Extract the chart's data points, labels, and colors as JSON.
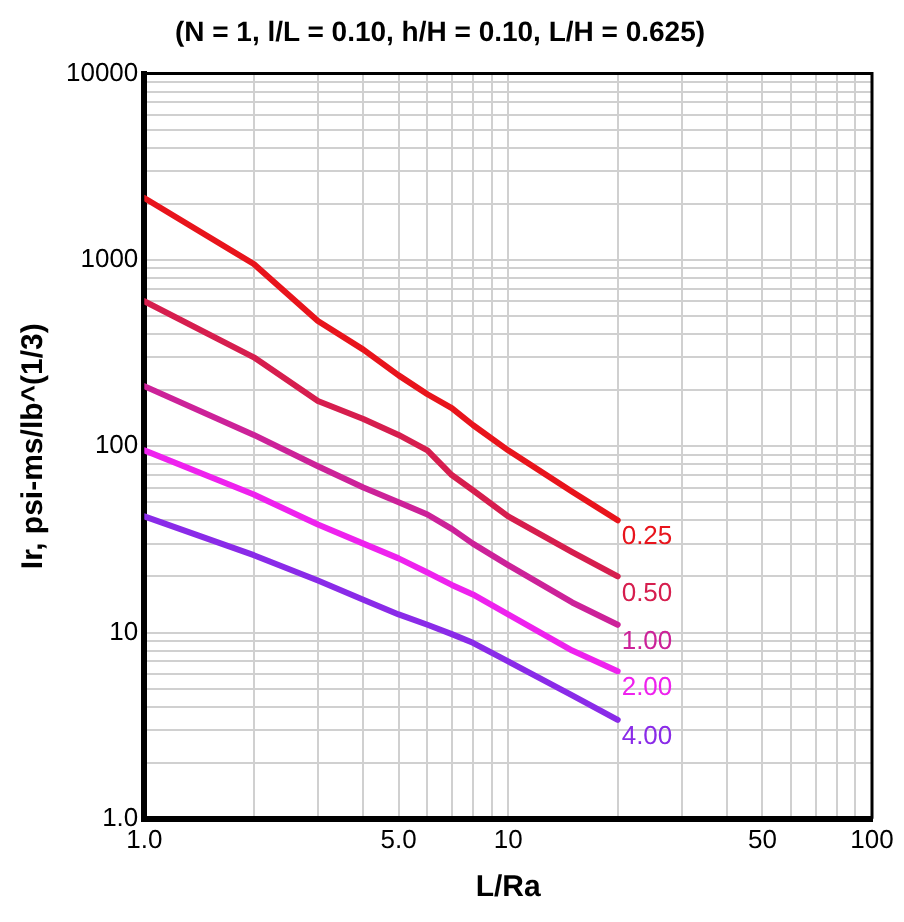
{
  "chart_data": {
    "type": "line",
    "title": "(N = 1, l/L = 0.10, h/H = 0.10, L/H = 0.625)",
    "xlabel": "L/Ra",
    "ylabel": "Ir, psi-ms/lb^(1/3)",
    "log": "xy",
    "grid": true,
    "legend": false,
    "marker": "none",
    "line_style": "solid",
    "x": [
      1,
      2,
      3,
      4,
      5,
      6,
      7,
      8,
      10,
      15,
      20
    ],
    "xlim": [
      1,
      100
    ],
    "ylim": [
      1,
      10000
    ],
    "xticks": [
      {
        "value": 1,
        "label": "1.0"
      },
      {
        "value": 2,
        "label": null
      },
      {
        "value": 3,
        "label": null
      },
      {
        "value": 4,
        "label": null
      },
      {
        "value": 5,
        "label": "5.0"
      },
      {
        "value": 6,
        "label": null
      },
      {
        "value": 7,
        "label": null
      },
      {
        "value": 8,
        "label": null
      },
      {
        "value": 9,
        "label": null
      },
      10,
      {
        "value": 20,
        "label": null
      },
      {
        "value": 30,
        "label": null
      },
      {
        "value": 40,
        "label": null
      },
      50,
      {
        "value": 60,
        "label": null
      },
      {
        "value": 70,
        "label": null
      },
      {
        "value": 80,
        "label": null
      },
      {
        "value": 90,
        "label": null
      },
      100
    ],
    "yticks": [
      {
        "value": 1,
        "label": "1.0"
      },
      {
        "value": 2,
        "label": null
      },
      {
        "value": 3,
        "label": null
      },
      {
        "value": 4,
        "label": null
      },
      {
        "value": 5,
        "label": null
      },
      {
        "value": 6,
        "label": null
      },
      {
        "value": 7,
        "label": null
      },
      {
        "value": 8,
        "label": null
      },
      {
        "value": 9,
        "label": null
      },
      10,
      {
        "value": 20,
        "label": null
      },
      {
        "value": 30,
        "label": null
      },
      {
        "value": 40,
        "label": null
      },
      {
        "value": 50,
        "label": null
      },
      {
        "value": 60,
        "label": null
      },
      {
        "value": 70,
        "label": null
      },
      {
        "value": 80,
        "label": null
      },
      {
        "value": 90,
        "label": null
      },
      100,
      {
        "value": 200,
        "label": null
      },
      {
        "value": 300,
        "label": null
      },
      {
        "value": 400,
        "label": null
      },
      {
        "value": 500,
        "label": null
      },
      {
        "value": 600,
        "label": null
      },
      {
        "value": 700,
        "label": null
      },
      {
        "value": 800,
        "label": null
      },
      {
        "value": 900,
        "label": null
      },
      1000,
      {
        "value": 2000,
        "label": null
      },
      {
        "value": 3000,
        "label": null
      },
      {
        "value": 4000,
        "label": null
      },
      {
        "value": 5000,
        "label": null
      },
      {
        "value": 6000,
        "label": null
      },
      {
        "value": 7000,
        "label": null
      },
      {
        "value": 8000,
        "label": null
      },
      {
        "value": 9000,
        "label": null
      },
      10000
    ],
    "series": [
      {
        "name": "0.25",
        "color": "#e8141c",
        "values": [
          2150,
          950,
          470,
          330,
          240,
          190,
          160,
          130,
          95,
          57,
          40
        ]
      },
      {
        "name": "0.50",
        "color": "#d61e4e",
        "values": [
          600,
          300,
          175,
          140,
          115,
          95,
          70,
          58,
          42,
          27,
          20
        ]
      },
      {
        "name": "1.00",
        "color": "#cc2299",
        "values": [
          210,
          115,
          78,
          60,
          50,
          43,
          36,
          30,
          23,
          14.5,
          11
        ]
      },
      {
        "name": "2.00",
        "color": "#ee22ee",
        "values": [
          95,
          55,
          38,
          30,
          25,
          21,
          18,
          16,
          12.5,
          8,
          6.2
        ]
      },
      {
        "name": "4.00",
        "color": "#8a2be8",
        "values": [
          42,
          26,
          19,
          15,
          12.5,
          11,
          9.8,
          8.8,
          7,
          4.6,
          3.4
        ]
      }
    ]
  }
}
